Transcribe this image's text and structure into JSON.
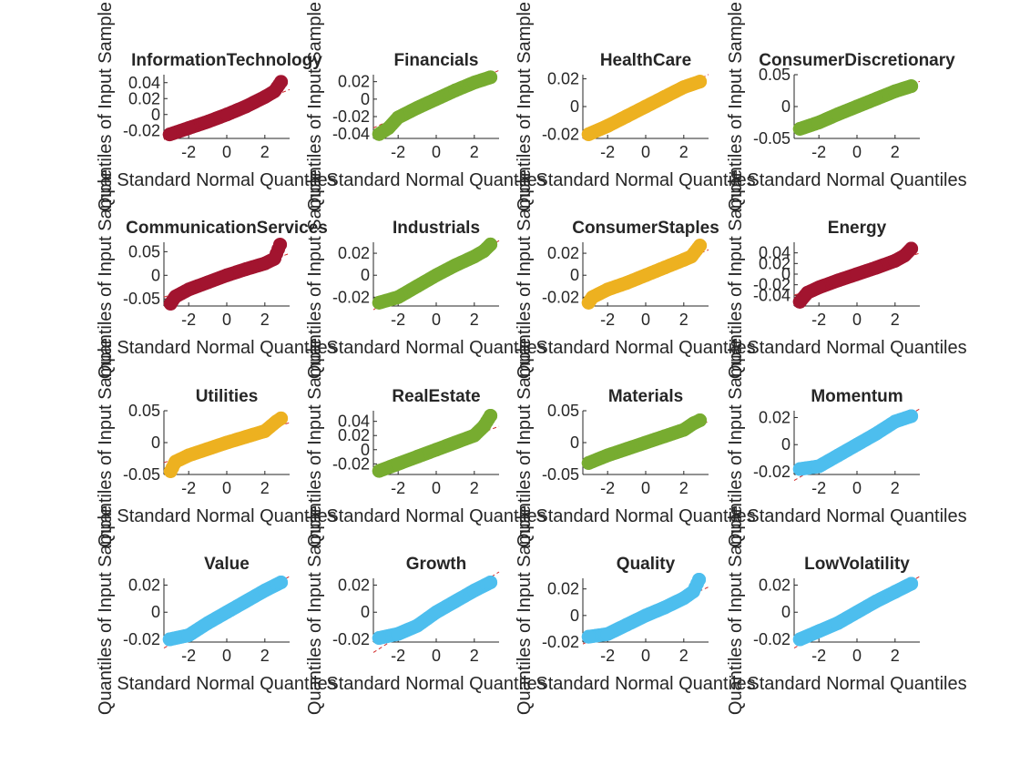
{
  "figure": {
    "background": "#ffffff"
  },
  "xlabel": "Standard Normal Quantiles",
  "ylabel": "Quantiles of Input Sample",
  "colors": {
    "red": "#a2142f",
    "green": "#77ac30",
    "yellow": "#edb120",
    "blue": "#4dbeee"
  },
  "chart_data": [
    {
      "type": "scatter",
      "title": "InformationTechnology",
      "color": "#a2142f",
      "xlim": [
        -3.3,
        3.3
      ],
      "ylim": [
        -0.03,
        0.05
      ],
      "xticks": [
        -2,
        0,
        2
      ],
      "xtick_labels": [
        "-2",
        "0",
        "2"
      ],
      "yticks": [
        -0.02,
        0,
        0.02,
        0.04
      ],
      "ytick_labels": [
        "-0.02",
        "0",
        "0.02",
        "0.04"
      ],
      "x": [
        -3.0,
        -2.0,
        -1.0,
        0,
        1.0,
        2.0,
        2.5,
        2.85
      ],
      "y": [
        -0.025,
        -0.017,
        -0.009,
        0,
        0.01,
        0.022,
        0.029,
        0.041
      ]
    },
    {
      "type": "scatter",
      "title": "Financials",
      "color": "#77ac30",
      "xlim": [
        -3.3,
        3.3
      ],
      "ylim": [
        -0.045,
        0.028
      ],
      "xticks": [
        -2,
        0,
        2
      ],
      "xtick_labels": [
        "-2",
        "0",
        "2"
      ],
      "yticks": [
        -0.04,
        -0.02,
        0,
        0.02
      ],
      "ytick_labels": [
        "-0.04",
        "-0.02",
        "0",
        "0.02"
      ],
      "x": [
        -3.0,
        -2.5,
        -2.0,
        -1.0,
        0,
        1.0,
        2.0,
        2.85
      ],
      "y": [
        -0.04,
        -0.033,
        -0.021,
        -0.01,
        0,
        0.01,
        0.019,
        0.025
      ]
    },
    {
      "type": "scatter",
      "title": "HealthCare",
      "color": "#edb120",
      "xlim": [
        -3.3,
        3.3
      ],
      "ylim": [
        -0.023,
        0.023
      ],
      "xticks": [
        -2,
        0,
        2
      ],
      "xtick_labels": [
        "-2",
        "0",
        "2"
      ],
      "yticks": [
        -0.02,
        0,
        0.02
      ],
      "ytick_labels": [
        "-0.02",
        "0",
        "0.02"
      ],
      "x": [
        -3.0,
        -2.0,
        -1.0,
        0,
        1.0,
        2.0,
        2.85
      ],
      "y": [
        -0.02,
        -0.014,
        -0.007,
        0,
        0.007,
        0.014,
        0.018
      ]
    },
    {
      "type": "scatter",
      "title": "ConsumerDiscretionary",
      "color": "#77ac30",
      "xlim": [
        -3.3,
        3.3
      ],
      "ylim": [
        -0.05,
        0.05
      ],
      "xticks": [
        -2,
        0,
        2
      ],
      "xtick_labels": [
        "-2",
        "0",
        "2"
      ],
      "yticks": [
        -0.05,
        0,
        0.05
      ],
      "ytick_labels": [
        "-0.05",
        "0",
        "0.05"
      ],
      "x": [
        -3.0,
        -2.0,
        -1.0,
        0,
        1.0,
        2.0,
        2.85
      ],
      "y": [
        -0.035,
        -0.025,
        -0.012,
        0,
        0.012,
        0.024,
        0.032
      ]
    },
    {
      "type": "scatter",
      "title": "CommunicationServices",
      "color": "#a2142f",
      "xlim": [
        -3.3,
        3.3
      ],
      "ylim": [
        -0.065,
        0.07
      ],
      "xticks": [
        -2,
        0,
        2
      ],
      "xtick_labels": [
        "-2",
        "0",
        "2"
      ],
      "yticks": [
        -0.05,
        0,
        0.05
      ],
      "ytick_labels": [
        "-0.05",
        "0",
        "0.05"
      ],
      "x": [
        -2.95,
        -2.7,
        -2.0,
        -1.0,
        0,
        1.0,
        2.0,
        2.5,
        2.8
      ],
      "y": [
        -0.06,
        -0.045,
        -0.03,
        -0.015,
        0,
        0.013,
        0.025,
        0.035,
        0.065
      ]
    },
    {
      "type": "scatter",
      "title": "Industrials",
      "color": "#77ac30",
      "xlim": [
        -3.3,
        3.3
      ],
      "ylim": [
        -0.028,
        0.03
      ],
      "xticks": [
        -2,
        0,
        2
      ],
      "xtick_labels": [
        "-2",
        "0",
        "2"
      ],
      "yticks": [
        -0.02,
        0,
        0.02
      ],
      "ytick_labels": [
        "-0.02",
        "0",
        "0.02"
      ],
      "x": [
        -3.0,
        -2.0,
        -1.0,
        0,
        1.0,
        2.0,
        2.5,
        2.85
      ],
      "y": [
        -0.025,
        -0.02,
        -0.01,
        0,
        0.009,
        0.017,
        0.022,
        0.028
      ]
    },
    {
      "type": "scatter",
      "title": "ConsumerStaples",
      "color": "#edb120",
      "xlim": [
        -3.3,
        3.3
      ],
      "ylim": [
        -0.028,
        0.03
      ],
      "xticks": [
        -2,
        0,
        2
      ],
      "xtick_labels": [
        "-2",
        "0",
        "2"
      ],
      "yticks": [
        -0.02,
        0,
        0.02
      ],
      "ytick_labels": [
        "-0.02",
        "0",
        "0.02"
      ],
      "x": [
        -3.0,
        -2.8,
        -2.0,
        -1.0,
        0,
        1.0,
        2.0,
        2.4,
        2.85
      ],
      "y": [
        -0.025,
        -0.02,
        -0.013,
        -0.007,
        0,
        0.007,
        0.014,
        0.017,
        0.027
      ]
    },
    {
      "type": "scatter",
      "title": "Energy",
      "color": "#a2142f",
      "xlim": [
        -3.3,
        3.3
      ],
      "ylim": [
        -0.06,
        0.06
      ],
      "xticks": [
        -2,
        0,
        2
      ],
      "xtick_labels": [
        "-2",
        "0",
        "2"
      ],
      "yticks": [
        -0.04,
        -0.02,
        0,
        0.02,
        0.04
      ],
      "ytick_labels": [
        "-0.04",
        "-0.02",
        "0",
        "0.02",
        "0.04"
      ],
      "x": [
        -3.0,
        -2.6,
        -2.0,
        -1.0,
        0,
        1.0,
        2.0,
        2.5,
        2.85
      ],
      "y": [
        -0.052,
        -0.035,
        -0.025,
        -0.012,
        0,
        0.012,
        0.025,
        0.035,
        0.048
      ]
    },
    {
      "type": "scatter",
      "title": "Utilities",
      "color": "#edb120",
      "xlim": [
        -3.3,
        3.3
      ],
      "ylim": [
        -0.05,
        0.05
      ],
      "xticks": [
        -2,
        0,
        2
      ],
      "xtick_labels": [
        "-2",
        "0",
        "2"
      ],
      "yticks": [
        -0.05,
        0,
        0.05
      ],
      "ytick_labels": [
        "-0.05",
        "0",
        "0.05"
      ],
      "x": [
        -2.95,
        -2.7,
        -2.0,
        -1.0,
        0,
        1.0,
        2.0,
        2.6,
        2.85
      ],
      "y": [
        -0.045,
        -0.03,
        -0.02,
        -0.01,
        0,
        0.009,
        0.018,
        0.033,
        0.038
      ]
    },
    {
      "type": "scatter",
      "title": "RealEstate",
      "color": "#77ac30",
      "xlim": [
        -3.3,
        3.3
      ],
      "ylim": [
        -0.035,
        0.055
      ],
      "xticks": [
        -2,
        0,
        2
      ],
      "xtick_labels": [
        "-2",
        "0",
        "2"
      ],
      "yticks": [
        -0.02,
        0,
        0.02,
        0.04
      ],
      "ytick_labels": [
        "-0.02",
        "0",
        "0.02",
        "0.04"
      ],
      "x": [
        -3.0,
        -2.0,
        -1.0,
        0,
        1.0,
        2.0,
        2.5,
        2.85
      ],
      "y": [
        -0.03,
        -0.02,
        -0.01,
        0,
        0.01,
        0.02,
        0.033,
        0.048
      ]
    },
    {
      "type": "scatter",
      "title": "Materials",
      "color": "#77ac30",
      "xlim": [
        -3.3,
        3.3
      ],
      "ylim": [
        -0.05,
        0.05
      ],
      "xticks": [
        -2,
        0,
        2
      ],
      "xtick_labels": [
        "-2",
        "0",
        "2"
      ],
      "yticks": [
        -0.05,
        0,
        0.05
      ],
      "ytick_labels": [
        "-0.05",
        "0",
        "0.05"
      ],
      "x": [
        -3.0,
        -2.0,
        -1.0,
        0,
        1.0,
        2.0,
        2.5,
        2.85
      ],
      "y": [
        -0.032,
        -0.02,
        -0.01,
        0,
        0.01,
        0.02,
        0.03,
        0.035
      ]
    },
    {
      "type": "scatter",
      "title": "Momentum",
      "color": "#4dbeee",
      "xlim": [
        -3.3,
        3.3
      ],
      "ylim": [
        -0.022,
        0.025
      ],
      "xticks": [
        -2,
        0,
        2
      ],
      "xtick_labels": [
        "-2",
        "0",
        "2"
      ],
      "yticks": [
        -0.02,
        0,
        0.02
      ],
      "ytick_labels": [
        "-0.02",
        "0",
        "0.02"
      ],
      "x": [
        -3.0,
        -2.0,
        -1.0,
        0,
        1.0,
        2.0,
        2.85
      ],
      "y": [
        -0.018,
        -0.016,
        -0.008,
        0,
        0.008,
        0.017,
        0.021
      ]
    },
    {
      "type": "scatter",
      "title": "Value",
      "color": "#4dbeee",
      "xlim": [
        -3.3,
        3.3
      ],
      "ylim": [
        -0.022,
        0.025
      ],
      "xticks": [
        -2,
        0,
        2
      ],
      "xtick_labels": [
        "-2",
        "0",
        "2"
      ],
      "yticks": [
        -0.02,
        0,
        0.02
      ],
      "ytick_labels": [
        "-0.02",
        "0",
        "0.02"
      ],
      "x": [
        -3.0,
        -2.0,
        -1.0,
        0,
        1.0,
        2.0,
        2.85
      ],
      "y": [
        -0.02,
        -0.017,
        -0.008,
        0,
        0.008,
        0.016,
        0.022
      ]
    },
    {
      "type": "scatter",
      "title": "Growth",
      "color": "#4dbeee",
      "xlim": [
        -3.3,
        3.3
      ],
      "ylim": [
        -0.022,
        0.025
      ],
      "xticks": [
        -2,
        0,
        2
      ],
      "xtick_labels": [
        "-2",
        "0",
        "2"
      ],
      "yticks": [
        -0.02,
        0,
        0.02
      ],
      "ytick_labels": [
        "-0.02",
        "0",
        "0.02"
      ],
      "x": [
        -3.0,
        -2.0,
        -1.0,
        0,
        1.0,
        2.0,
        2.85
      ],
      "y": [
        -0.019,
        -0.016,
        -0.01,
        0,
        0.008,
        0.016,
        0.022
      ]
    },
    {
      "type": "scatter",
      "title": "Quality",
      "color": "#4dbeee",
      "xlim": [
        -3.3,
        3.3
      ],
      "ylim": [
        -0.02,
        0.028
      ],
      "xticks": [
        -2,
        0,
        2
      ],
      "xtick_labels": [
        "-2",
        "0",
        "2"
      ],
      "yticks": [
        -0.02,
        0,
        0.02
      ],
      "ytick_labels": [
        "-0.02",
        "0",
        "0.02"
      ],
      "x": [
        -3.0,
        -2.0,
        -1.0,
        0,
        1.0,
        2.0,
        2.5,
        2.8
      ],
      "y": [
        -0.016,
        -0.014,
        -0.007,
        0,
        0.006,
        0.013,
        0.018,
        0.027
      ]
    },
    {
      "type": "scatter",
      "title": "LowVolatility",
      "color": "#4dbeee",
      "xlim": [
        -3.3,
        3.3
      ],
      "ylim": [
        -0.022,
        0.025
      ],
      "xticks": [
        -2,
        0,
        2
      ],
      "xtick_labels": [
        "-2",
        "0",
        "2"
      ],
      "yticks": [
        -0.02,
        0,
        0.02
      ],
      "ytick_labels": [
        "-0.02",
        "0",
        "0.02"
      ],
      "x": [
        -3.0,
        -2.0,
        -1.0,
        0,
        1.0,
        2.0,
        2.85
      ],
      "y": [
        -0.02,
        -0.014,
        -0.008,
        0,
        0.008,
        0.015,
        0.021
      ]
    }
  ]
}
